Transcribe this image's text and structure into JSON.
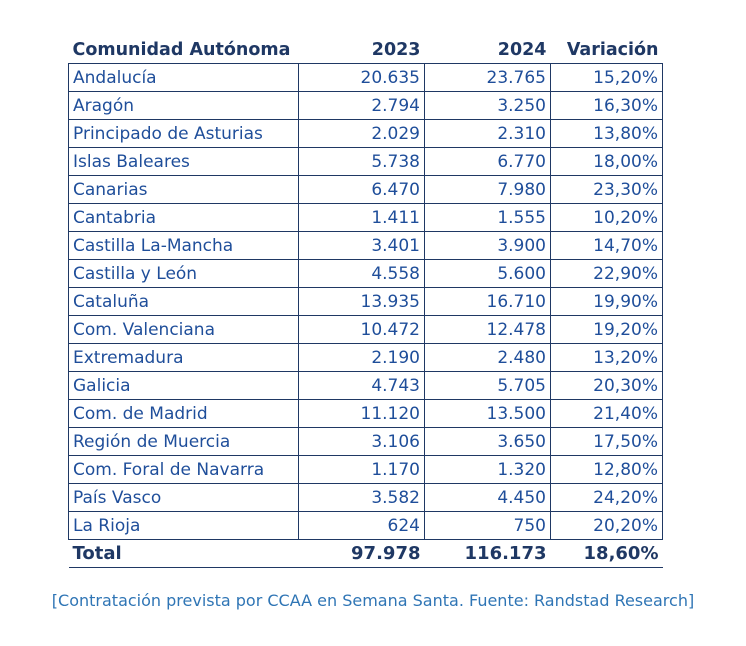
{
  "table": {
    "headers": {
      "region": "Comunidad Autónoma",
      "y2023": "2023",
      "y2024": "2024",
      "variation": "Variación"
    },
    "rows": [
      {
        "region": "Andalucía",
        "y2023": "20.635",
        "y2024": "23.765",
        "variation": "15,20%"
      },
      {
        "region": "Aragón",
        "y2023": "2.794",
        "y2024": "3.250",
        "variation": "16,30%"
      },
      {
        "region": "Principado de Asturias",
        "y2023": "2.029",
        "y2024": "2.310",
        "variation": "13,80%"
      },
      {
        "region": "Islas Baleares",
        "y2023": "5.738",
        "y2024": "6.770",
        "variation": "18,00%"
      },
      {
        "region": "Canarias",
        "y2023": "6.470",
        "y2024": "7.980",
        "variation": "23,30%"
      },
      {
        "region": "Cantabria",
        "y2023": "1.411",
        "y2024": "1.555",
        "variation": "10,20%"
      },
      {
        "region": "Castilla La-Mancha",
        "y2023": "3.401",
        "y2024": "3.900",
        "variation": "14,70%"
      },
      {
        "region": "Castilla y León",
        "y2023": "4.558",
        "y2024": "5.600",
        "variation": "22,90%"
      },
      {
        "region": "Cataluña",
        "y2023": "13.935",
        "y2024": "16.710",
        "variation": "19,90%"
      },
      {
        "region": "Com. Valenciana",
        "y2023": "10.472",
        "y2024": "12.478",
        "variation": "19,20%"
      },
      {
        "region": "Extremadura",
        "y2023": "2.190",
        "y2024": "2.480",
        "variation": "13,20%"
      },
      {
        "region": "Galicia",
        "y2023": "4.743",
        "y2024": "5.705",
        "variation": "20,30%"
      },
      {
        "region": "Com. de Madrid",
        "y2023": "11.120",
        "y2024": "13.500",
        "variation": "21,40%"
      },
      {
        "region": "Región de Muercia",
        "y2023": "3.106",
        "y2024": "3.650",
        "variation": "17,50%"
      },
      {
        "region": "Com. Foral de Navarra",
        "y2023": "1.170",
        "y2024": "1.320",
        "variation": "12,80%"
      },
      {
        "region": "País Vasco",
        "y2023": "3.582",
        "y2024": "4.450",
        "variation": "24,20%"
      },
      {
        "region": "La Rioja",
        "y2023": "624",
        "y2024": "750",
        "variation": "20,20%"
      }
    ],
    "total": {
      "region": "Total",
      "y2023": "97.978",
      "y2024": "116.173",
      "variation": "18,60%"
    }
  },
  "caption": "[Contratación prevista por CCAA en Semana Santa. Fuente: Randstad Research]",
  "colors": {
    "header_text": "#1f3864",
    "cell_text": "#1f4e9a",
    "caption_text": "#2f75b5",
    "border": "#1f3864"
  }
}
